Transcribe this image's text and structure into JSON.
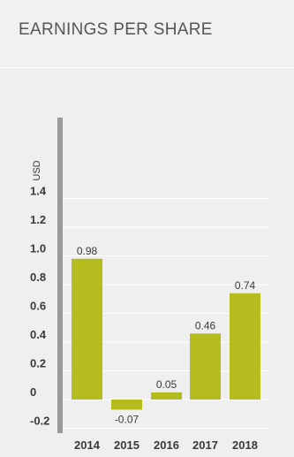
{
  "title": "EARNINGS PER SHARE",
  "colors": {
    "bar": "#b4bd1d",
    "axis": "#9a9a9a",
    "grid": "#ffffff"
  },
  "chart_data": {
    "type": "bar",
    "title": "EARNINGS PER SHARE",
    "ylabel": "USD",
    "xlabel": "",
    "categories": [
      "2014",
      "2015",
      "2016",
      "2017",
      "2018"
    ],
    "values": [
      0.98,
      -0.07,
      0.05,
      0.46,
      0.74
    ],
    "value_labels": [
      "0.98",
      "-0.07",
      "0.05",
      "0.46",
      "0.74"
    ],
    "yticks": [
      1.4,
      1.2,
      1.0,
      0.8,
      0.6,
      0.4,
      0.2,
      0,
      -0.2
    ],
    "ytick_labels": [
      "1.4",
      "1.2",
      "1.0",
      "0.8",
      "0.6",
      "0.4",
      "0.2",
      "0",
      "-0.2"
    ],
    "ylim": [
      -0.2,
      1.4
    ],
    "grid": true,
    "legend": "none"
  }
}
